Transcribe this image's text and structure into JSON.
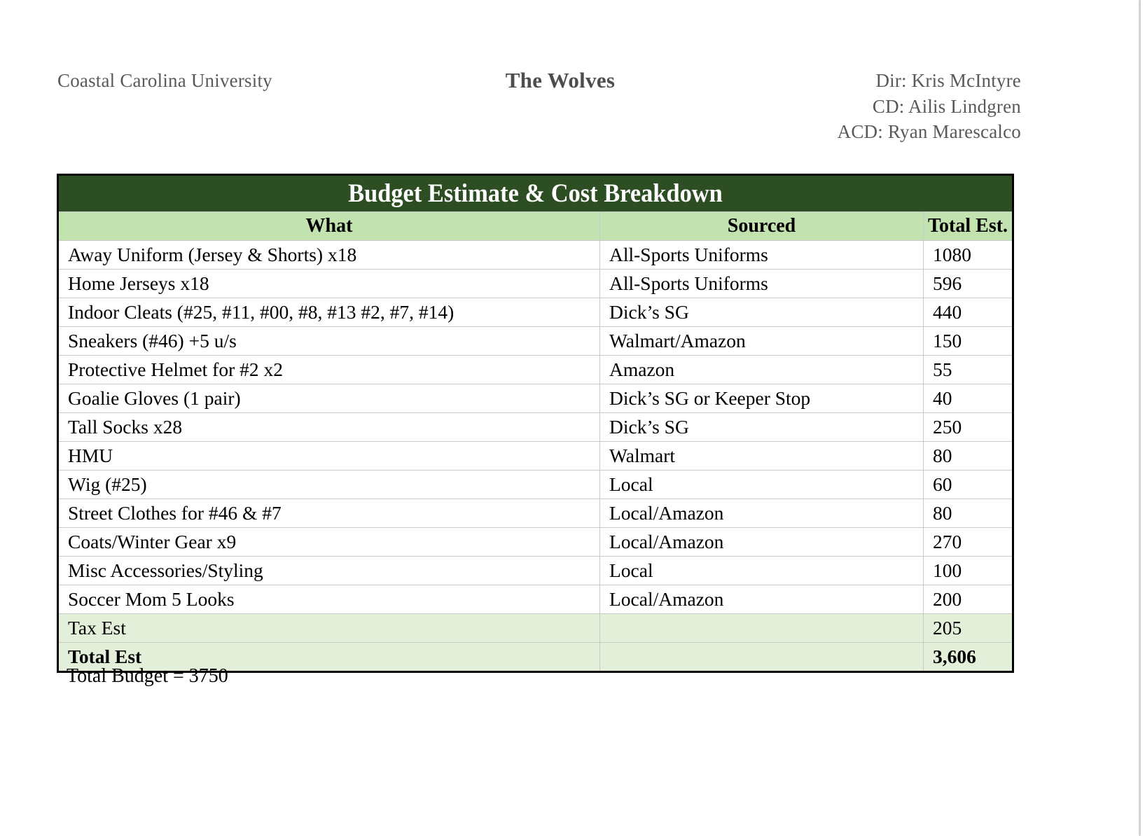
{
  "header": {
    "organization": "Coastal Carolina University",
    "show_title": "The Wolves",
    "credits": [
      "Dir: Kris McIntyre",
      "CD: Ailis Lindgren",
      "ACD: Ryan Marescalco"
    ]
  },
  "table": {
    "title": "Budget Estimate & Cost Breakdown",
    "columns": [
      "What",
      "Sourced",
      "Total Est."
    ],
    "rows": [
      {
        "what": "Away Uniform (Jersey & Shorts) x18",
        "sourced": "All-Sports Uniforms",
        "total": "1080"
      },
      {
        "what": "Home Jerseys x18",
        "sourced": "All-Sports Uniforms",
        "total": "596"
      },
      {
        "what": "Indoor Cleats (#25, #11, #00, #8, #13 #2, #7, #14)",
        "sourced": "Dick’s SG",
        "total": "440"
      },
      {
        "what": "Sneakers (#46) +5 u/s",
        "sourced": "Walmart/Amazon",
        "total": "150"
      },
      {
        "what": "Protective Helmet for #2 x2",
        "sourced": "Amazon",
        "total": "55"
      },
      {
        "what": "Goalie Gloves (1 pair)",
        "sourced": "Dick’s SG or Keeper Stop",
        "total": "40"
      },
      {
        "what": "Tall Socks x28",
        "sourced": "Dick’s SG",
        "total": "250"
      },
      {
        "what": "HMU",
        "sourced": "Walmart",
        "total": "80"
      },
      {
        "what": "Wig (#25)",
        "sourced": "Local",
        "total": "60"
      },
      {
        "what": "Street Clothes for #46 & #7",
        "sourced": "Local/Amazon",
        "total": "80"
      },
      {
        "what": "Coats/Winter Gear x9",
        "sourced": "Local/Amazon",
        "total": "270"
      },
      {
        "what": "Misc Accessories/Styling",
        "sourced": "Local",
        "total": "100"
      },
      {
        "what": "Soccer Mom 5 Looks",
        "sourced": "Local/Amazon",
        "total": "200"
      }
    ],
    "tax_row": {
      "what": "Tax Est",
      "sourced": "",
      "total": "205"
    },
    "total_row": {
      "what": "Total Est",
      "sourced": "",
      "total": "3,606"
    }
  },
  "footer": {
    "note": "Total Budget = 3750"
  },
  "colors": {
    "band_green": "#2d4d22",
    "header_green": "#c2e2b0",
    "summary_green": "#e3efd9",
    "grid_gray": "#c9c9c9",
    "header_text_gray": "#595959"
  }
}
